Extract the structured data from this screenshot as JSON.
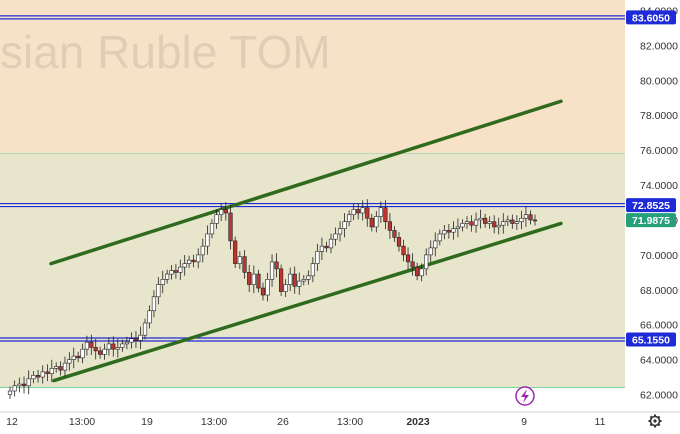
{
  "watermark": "sian Ruble TOM",
  "colors": {
    "zone_upper": "#f7e2c8",
    "zone_lower": "#e8e5cd",
    "channel": "#2f6b1c",
    "level": "#1f2bd6",
    "up_candle": "#1f7a5c",
    "down_candle": "#c0342f",
    "last_price_tag": "#25a07a",
    "axis_text": "#333333",
    "zone_border": "#7dcfa0"
  },
  "chart_data": {
    "type": "candlestick",
    "y_ticks": [
      "84.0000",
      "82.0000",
      "80.0000",
      "78.0000",
      "76.0000",
      "74.0000",
      "72.0000",
      "70.0000",
      "68.0000",
      "66.0000",
      "64.0000",
      "62.0000"
    ],
    "ylim": [
      61.0,
      84.6
    ],
    "x_ticks": [
      "12",
      "13:00",
      "19",
      "13:00",
      "26",
      "13:00",
      "2023",
      "9",
      "11"
    ],
    "price_labels": [
      {
        "text": "83.6050",
        "value": 83.605,
        "kind": "level"
      },
      {
        "text": "72.8525",
        "value": 72.8525,
        "kind": "level"
      },
      {
        "text": "71.9875",
        "value": 71.9875,
        "kind": "last"
      },
      {
        "text": "65.1550",
        "value": 65.155,
        "kind": "level"
      }
    ],
    "horizontal_levels": [
      83.605,
      72.8525,
      65.155
    ],
    "zones": [
      {
        "from": 75.8,
        "to": 84.6,
        "name": "upper"
      },
      {
        "from": 62.4,
        "to": 75.8,
        "name": "lower"
      }
    ],
    "channel_upper": [
      {
        "t": 0.17,
        "v": 69.5
      },
      {
        "t": 1.87,
        "v": 78.8
      }
    ],
    "channel_lower": [
      {
        "t": 0.18,
        "v": 62.8
      },
      {
        "t": 1.87,
        "v": 71.8
      }
    ],
    "series": [
      {
        "close": [
          62.2,
          62.5,
          62.6,
          62.5,
          62.9,
          63.1,
          63.0,
          63.3,
          63.2,
          63.5,
          63.6,
          63.4,
          63.8,
          64.0,
          64.2,
          64.1,
          64.6,
          65.0,
          64.7,
          64.5,
          64.3,
          64.6,
          64.9,
          64.6,
          64.7,
          64.9,
          65.0,
          65.2,
          65.1,
          65.4,
          66.1,
          66.8,
          67.6,
          68.3,
          68.6,
          68.9,
          69.1,
          69.0,
          69.3,
          69.5,
          69.7,
          69.6,
          70.0,
          70.5,
          71.2,
          71.8,
          72.3,
          72.6,
          72.4,
          70.8,
          69.5,
          69.9,
          69.0,
          68.3,
          68.9,
          68.1,
          67.7,
          68.6,
          69.6,
          69.2,
          67.9,
          68.3,
          68.9,
          68.2,
          68.5,
          68.6,
          68.8,
          69.5,
          70.2,
          70.5,
          70.4,
          70.9,
          71.2,
          71.5,
          71.9,
          72.3,
          72.6,
          72.4,
          72.7,
          72.1,
          71.6,
          72.2,
          72.7,
          71.9,
          71.4,
          71.0,
          70.5,
          70.0,
          69.6,
          69.3,
          68.8,
          69.2,
          70.0,
          70.4,
          70.8,
          71.2,
          71.4,
          71.3,
          71.5,
          71.6,
          71.8,
          71.9,
          71.7,
          72.0,
          72.1,
          71.8,
          71.9,
          71.6,
          71.7,
          71.9,
          72.0,
          71.8,
          71.9,
          72.1,
          72.3,
          72.0,
          71.9875
        ],
        "steps": [
          [
            0,
            1.0
          ],
          [
            0.13,
            0.0
          ],
          [
            0.36,
            0.5
          ],
          [
            0.46,
            0.5
          ],
          [
            0.49,
            0.0
          ],
          [
            0.62,
            0.5
          ],
          [
            0.64,
            0.7
          ],
          [
            0.73,
            1.0
          ],
          [
            0.78,
            1.4
          ],
          [
            0.79,
            1.0
          ],
          [
            0.84,
            0.8
          ],
          [
            0.87,
            0.5
          ]
        ]
      }
    ]
  }
}
